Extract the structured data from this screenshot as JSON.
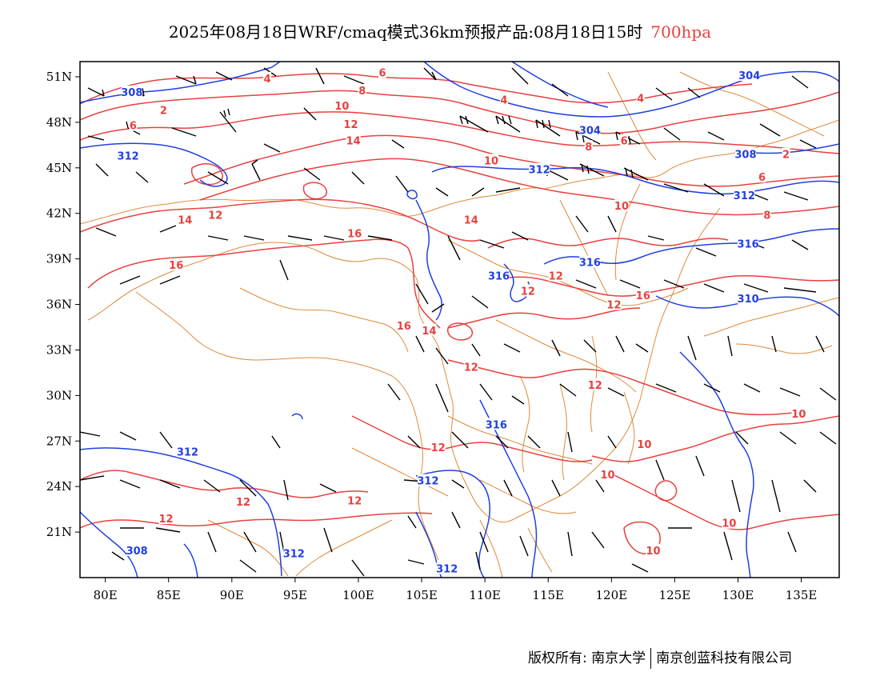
{
  "title": {
    "main": "2025年08月18日WRF/cmaq模式36km预报产品:08月18日15时",
    "level": "700hpa",
    "level_color": "#e8413e"
  },
  "axes": {
    "x_labels": [
      "80E",
      "85E",
      "90E",
      "95E",
      "100E",
      "105E",
      "110E",
      "115E",
      "120E",
      "125E",
      "130E",
      "135E"
    ],
    "x_values": [
      80,
      85,
      90,
      95,
      100,
      105,
      110,
      115,
      120,
      125,
      130,
      135
    ],
    "y_labels": [
      "51N",
      "48N",
      "45N",
      "42N",
      "39N",
      "36N",
      "33N",
      "30N",
      "27N",
      "24N",
      "21N"
    ],
    "y_values": [
      51,
      48,
      45,
      42,
      39,
      36,
      33,
      30,
      27,
      24,
      21
    ],
    "lon_range": [
      78,
      138
    ],
    "lat_range": [
      18,
      52
    ]
  },
  "colors": {
    "height_contour": "#2040e0",
    "temperature_contour": "#e8413e",
    "boundary": "#e08a3a",
    "wind_barb": "#000000"
  },
  "contour_labels": {
    "height": [
      {
        "text": "308",
        "lon": 82.1,
        "lat": 50.0
      },
      {
        "text": "312",
        "lon": 81.8,
        "lat": 45.8
      },
      {
        "text": "312",
        "lon": 114.3,
        "lat": 44.9
      },
      {
        "text": "304",
        "lon": 130.9,
        "lat": 51.1
      },
      {
        "text": "304",
        "lon": 118.3,
        "lat": 47.5
      },
      {
        "text": "308",
        "lon": 130.6,
        "lat": 45.9
      },
      {
        "text": "312",
        "lon": 130.5,
        "lat": 43.2
      },
      {
        "text": "316",
        "lon": 130.8,
        "lat": 40.0
      },
      {
        "text": "316",
        "lon": 118.3,
        "lat": 38.8
      },
      {
        "text": "316",
        "lon": 111.1,
        "lat": 37.9
      },
      {
        "text": "310",
        "lon": 130.8,
        "lat": 36.4
      },
      {
        "text": "316",
        "lon": 110.9,
        "lat": 28.1
      },
      {
        "text": "312",
        "lon": 86.5,
        "lat": 26.3
      },
      {
        "text": "312",
        "lon": 105.5,
        "lat": 24.4
      },
      {
        "text": "308",
        "lon": 82.5,
        "lat": 19.8
      },
      {
        "text": "312",
        "lon": 94.9,
        "lat": 19.6
      },
      {
        "text": "312",
        "lon": 107.0,
        "lat": 18.6
      }
    ],
    "temperature": [
      {
        "text": "4",
        "lon": 92.8,
        "lat": 50.9
      },
      {
        "text": "6",
        "lon": 101.9,
        "lat": 51.3
      },
      {
        "text": "2",
        "lon": 84.6,
        "lat": 48.8
      },
      {
        "text": "6",
        "lon": 82.2,
        "lat": 47.8
      },
      {
        "text": "8",
        "lon": 100.3,
        "lat": 50.1
      },
      {
        "text": "10",
        "lon": 98.7,
        "lat": 49.1
      },
      {
        "text": "12",
        "lon": 99.4,
        "lat": 47.9
      },
      {
        "text": "14",
        "lon": 99.6,
        "lat": 46.8
      },
      {
        "text": "4",
        "lon": 111.5,
        "lat": 49.5
      },
      {
        "text": "4",
        "lon": 122.3,
        "lat": 49.6
      },
      {
        "text": "6",
        "lon": 121.0,
        "lat": 46.8
      },
      {
        "text": "8",
        "lon": 118.2,
        "lat": 46.4
      },
      {
        "text": "2",
        "lon": 133.8,
        "lat": 45.9
      },
      {
        "text": "6",
        "lon": 131.9,
        "lat": 44.4
      },
      {
        "text": "8",
        "lon": 132.3,
        "lat": 41.9
      },
      {
        "text": "10",
        "lon": 110.5,
        "lat": 45.5
      },
      {
        "text": "10",
        "lon": 120.8,
        "lat": 42.5
      },
      {
        "text": "14",
        "lon": 86.3,
        "lat": 41.6
      },
      {
        "text": "12",
        "lon": 88.7,
        "lat": 41.9
      },
      {
        "text": "14",
        "lon": 108.9,
        "lat": 41.6
      },
      {
        "text": "16",
        "lon": 99.7,
        "lat": 40.7
      },
      {
        "text": "16",
        "lon": 85.6,
        "lat": 38.6
      },
      {
        "text": "12",
        "lon": 115.6,
        "lat": 37.9
      },
      {
        "text": "12",
        "lon": 113.4,
        "lat": 36.9
      },
      {
        "text": "16",
        "lon": 122.5,
        "lat": 36.6
      },
      {
        "text": "12",
        "lon": 120.2,
        "lat": 36.0
      },
      {
        "text": "16",
        "lon": 103.6,
        "lat": 34.6
      },
      {
        "text": "14",
        "lon": 105.6,
        "lat": 34.3
      },
      {
        "text": "12",
        "lon": 108.9,
        "lat": 31.9
      },
      {
        "text": "12",
        "lon": 118.7,
        "lat": 30.7
      },
      {
        "text": "10",
        "lon": 134.8,
        "lat": 28.8
      },
      {
        "text": "12",
        "lon": 106.3,
        "lat": 26.6
      },
      {
        "text": "10",
        "lon": 122.6,
        "lat": 26.8
      },
      {
        "text": "10",
        "lon": 119.7,
        "lat": 24.8
      },
      {
        "text": "12",
        "lon": 90.9,
        "lat": 23.0
      },
      {
        "text": "12",
        "lon": 99.7,
        "lat": 23.1
      },
      {
        "text": "12",
        "lon": 84.8,
        "lat": 21.9
      },
      {
        "text": "10",
        "lon": 129.3,
        "lat": 21.6
      },
      {
        "text": "10",
        "lon": 123.3,
        "lat": 19.8
      }
    ]
  },
  "copyright": {
    "left": "版权所有: 南京大学",
    "right": "南京创蓝科技有限公司"
  }
}
